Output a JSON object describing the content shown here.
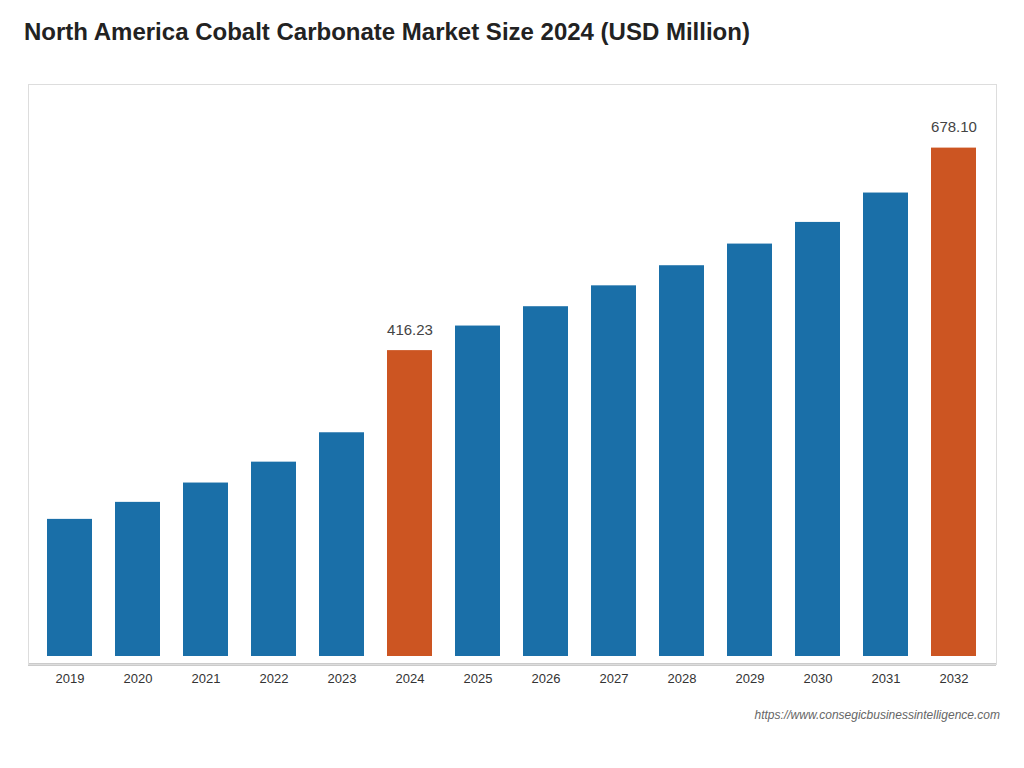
{
  "chart_data": {
    "type": "bar",
    "title": "North America Cobalt Carbonate Market Size 2024 (USD Million)",
    "categories": [
      "2019",
      "2020",
      "2021",
      "2022",
      "2023",
      "2024",
      "2025",
      "2026",
      "2027",
      "2028",
      "2029",
      "2030",
      "2031",
      "2032"
    ],
    "values": [
      198.0,
      220.0,
      245.0,
      272.0,
      310.0,
      416.23,
      448.0,
      473.0,
      500.0,
      526.0,
      554.0,
      582.0,
      620.0,
      678.1
    ],
    "value_labels": [
      null,
      null,
      null,
      null,
      null,
      "416.23",
      null,
      null,
      null,
      null,
      null,
      null,
      null,
      "678.10"
    ],
    "colors": [
      "#1a6fa8",
      "#1a6fa8",
      "#1a6fa8",
      "#1a6fa8",
      "#1a6fa8",
      "#cc5522",
      "#1a6fa8",
      "#1a6fa8",
      "#1a6fa8",
      "#1a6fa8",
      "#1a6fa8",
      "#1a6fa8",
      "#1a6fa8",
      "#cc5522"
    ],
    "ylim": [
      0,
      750
    ],
    "tick_labels": "x",
    "grid": false,
    "annotations": [
      {
        "text": "https://www.consegicbusinessintelligence.com"
      }
    ]
  }
}
